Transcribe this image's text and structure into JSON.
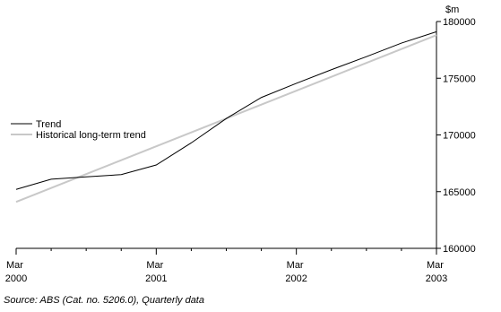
{
  "chart_data": {
    "type": "line",
    "y_label": "$m",
    "source": "Source: ABS (Cat. no. 5206.0), Quarterly data",
    "categories": [
      "Mar 2000",
      null,
      null,
      null,
      "Mar 2001",
      null,
      null,
      null,
      "Mar 2002",
      null,
      null,
      null,
      "Mar 2003"
    ],
    "series": [
      {
        "name": "Trend",
        "color": "#000000",
        "width": 1,
        "values": [
          165200,
          166100,
          166300,
          166500,
          167350,
          169300,
          171450,
          173300,
          174550,
          175750,
          176900,
          178100,
          179100
        ]
      },
      {
        "name": "Historical long-term trend",
        "color": "#c8c8c8",
        "width": 2,
        "values": [
          164100,
          165325,
          166550,
          167775,
          169000,
          170225,
          171450,
          172675,
          173900,
          175125,
          176350,
          177575,
          178800
        ]
      }
    ],
    "ylim": [
      160000,
      180000
    ],
    "yticks": [
      160000,
      165000,
      170000,
      175000,
      180000
    ],
    "legend": "left",
    "grid": false
  }
}
